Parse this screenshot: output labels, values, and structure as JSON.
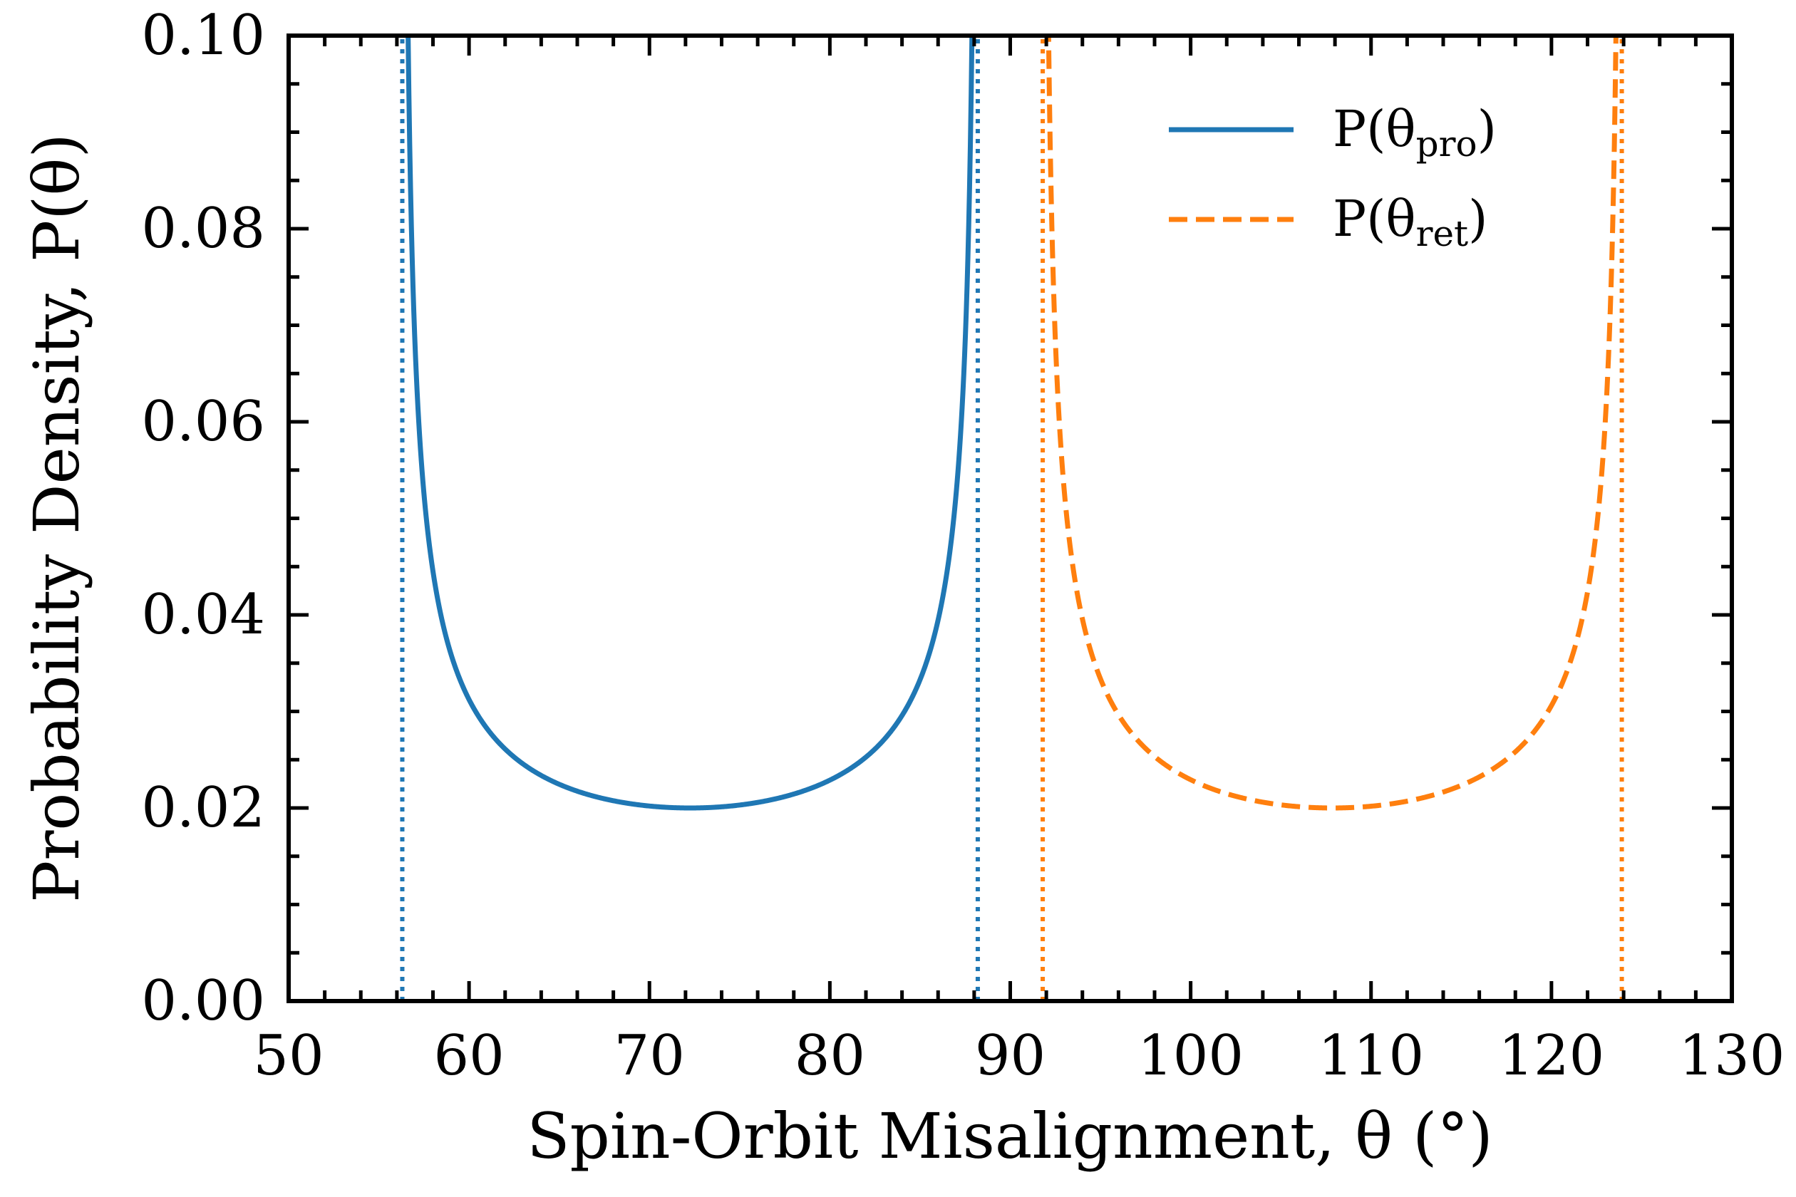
{
  "chart_data": {
    "type": "line",
    "xlabel": "Spin-Orbit Misalignment, θ (°)",
    "ylabel": "Probability Density, P(θ)",
    "xlim": [
      50,
      130
    ],
    "ylim": [
      0.0,
      0.1
    ],
    "x_ticks": [
      50,
      60,
      70,
      80,
      90,
      100,
      110,
      120,
      130
    ],
    "x_tick_labels": [
      "50",
      "60",
      "70",
      "80",
      "90",
      "100",
      "110",
      "120",
      "130"
    ],
    "y_ticks": [
      0.0,
      0.02,
      0.04,
      0.06,
      0.08,
      0.1
    ],
    "y_tick_labels": [
      "0.00",
      "0.02",
      "0.04",
      "0.06",
      "0.08",
      "0.10"
    ],
    "x_minor_step": 2,
    "y_minor_step": 0.005,
    "grid": false,
    "legend_position": "top-right",
    "series": [
      {
        "name": "P(θpro)",
        "legend_main": "P(θ",
        "legend_sub": "pro",
        "legend_close": ")",
        "color": "#1f77b4",
        "style": "solid",
        "lower_bound": 56.3,
        "upper_bound": 88.2,
        "minimum": 0.02,
        "bounds_marked_dotted": true
      },
      {
        "name": "P(θret)",
        "legend_main": "P(θ",
        "legend_sub": "ret",
        "legend_close": ")",
        "color": "#ff7f0e",
        "style": "dashed",
        "lower_bound": 91.8,
        "upper_bound": 123.9,
        "minimum": 0.02,
        "bounds_marked_dotted": true
      }
    ]
  }
}
